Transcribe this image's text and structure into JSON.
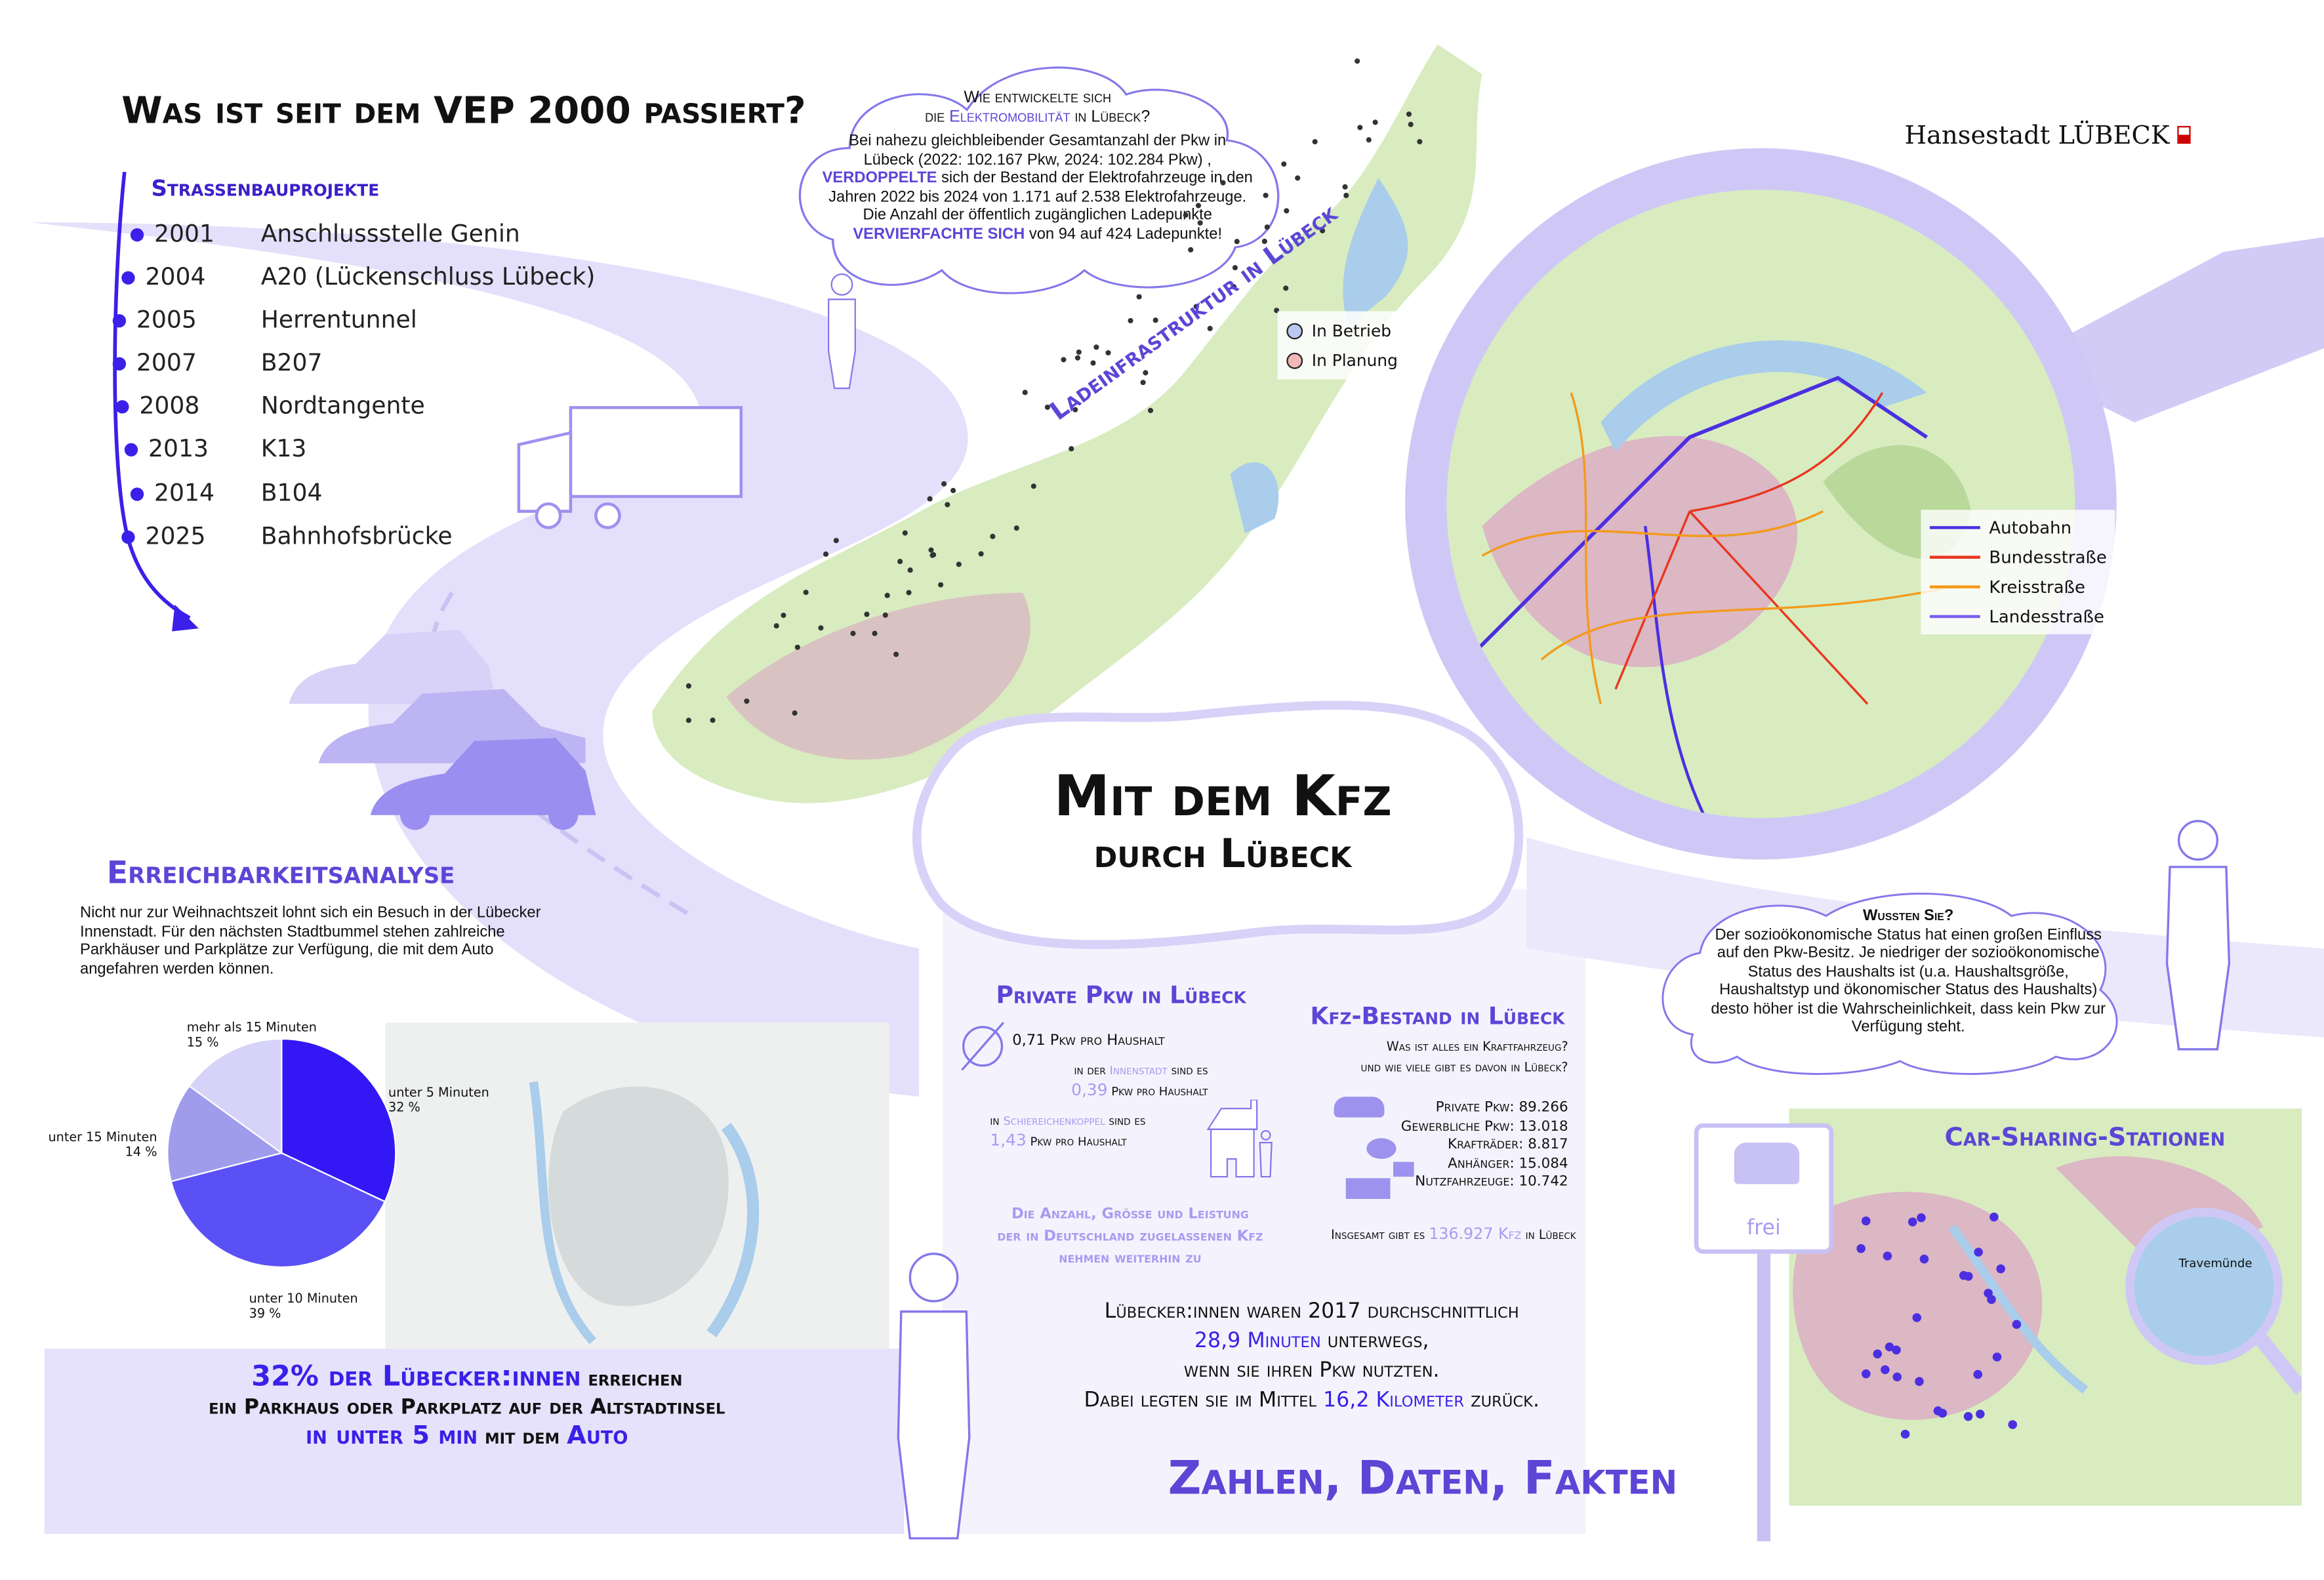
{
  "timeline": {
    "title": "Was ist seit dem VEP 2000 passiert?",
    "subtitle": "Straßenbauprojekte",
    "items": [
      {
        "year": "2001",
        "project": "Anschlussstelle Genin"
      },
      {
        "year": "2004",
        "project": "A20 (Lückenschluss Lübeck)"
      },
      {
        "year": "2005",
        "project": "Herrentunnel"
      },
      {
        "year": "2007",
        "project": "B207"
      },
      {
        "year": "2008",
        "project": "Nordtangente"
      },
      {
        "year": "2013",
        "project": "K13"
      },
      {
        "year": "2014",
        "project": "B104"
      },
      {
        "year": "2025",
        "project": "Bahnhofsbrücke"
      }
    ]
  },
  "emob": {
    "q1": "Wie entwickelte sich",
    "q2a": "die ",
    "q2b": "Elektromobilität",
    "q2c": " in Lübeck?",
    "l1": "Bei nahezu gleichbleibender Gesamtanzahl der Pkw in",
    "l2": "Lübeck (2022: 102.167 Pkw, 2024: 102.284 Pkw) ,",
    "l3a": "VERDOPPELTE",
    "l3b": " sich der Bestand der Elektrofahrzeuge in den",
    "l4": "Jahren 2022 bis 2024 von 1.171 auf 2.538 Elektrofahrzeuge.",
    "l5": "Die Anzahl der öffentlich zugänglichen Ladepunkte",
    "l6a": "VERVIERFACHTE SICH",
    "l6b": " von 94 auf 424 Ladepunkte!"
  },
  "lade_map": {
    "title": "Ladeinfrastruktur in Lübeck",
    "legend": [
      {
        "label": "In Betrieb",
        "color": "#b9c8ee"
      },
      {
        "label": "In Planung",
        "color": "#f2b7b7"
      }
    ]
  },
  "logo": {
    "text": "Hansestadt LÜBECK"
  },
  "road_map": {
    "legend": [
      {
        "label": "Autobahn",
        "color": "#4b2fe0"
      },
      {
        "label": "Bundesstraße",
        "color": "#e8361f"
      },
      {
        "label": "Kreisstraße",
        "color": "#f39a1b"
      },
      {
        "label": "Landesstraße",
        "color": "#7a5ef0"
      }
    ]
  },
  "center_title": {
    "line1": "Mit dem Kfz",
    "line2": "durch Lübeck"
  },
  "reach": {
    "title": "Erreichbarkeitsanalyse",
    "text": "Nicht nur zur Weihnachtszeit lohnt sich ein Besuch in der Lübecker Innenstadt. Für den nächsten Stadtbummel stehen zahlreiche Parkhäuser und Parkplätze zur Verfügung, die mit dem Auto angefahren werden können.",
    "s1": "32% der Lübecker:innen",
    "s2": " erreichen",
    "s3": "ein Parkhaus oder Parkplatz auf der Altstadtinsel",
    "s4": "in unter 5 min",
    "s5": " mit dem ",
    "s6": "Auto"
  },
  "chart_data": {
    "type": "pie",
    "slices": [
      {
        "label": "unter 5 Minuten",
        "value": 32,
        "display": "32 %",
        "color": "#3318f5"
      },
      {
        "label": "unter 10 Minuten",
        "value": 39,
        "display": "39 %",
        "color": "#5b50f6"
      },
      {
        "label": "unter 15 Minuten",
        "value": 14,
        "display": "14 %",
        "color": "#a09cec"
      },
      {
        "label": "mehr als 15 Minuten",
        "value": 15,
        "display": "15 %",
        "color": "#d6d2f8"
      }
    ]
  },
  "private_pkw": {
    "title": "Private Pkw in Lübeck",
    "avg": "0,71 Pkw pro Haushalt",
    "inner_a": "in der ",
    "inner_b": "Innenstadt",
    "inner_c": " sind es",
    "inner_val": "0,39",
    "inner_unit": " Pkw pro Haushalt",
    "sch_a": "in ",
    "sch_b": "Schiereichenkoppel",
    "sch_c": " sind es",
    "sch_val": "1,43",
    "sch_unit": " Pkw pro Haushalt",
    "trend1": "Die Anzahl, Größe und Leistung",
    "trend2": "der in Deutschland zugelassenen Kfz",
    "trend3": "nehmen weiterhin zu"
  },
  "kfz": {
    "title": "Kfz-Bestand in Lübeck",
    "q1": "Was ist alles ein Kraftfahrzeug?",
    "q2": "und wie viele gibt es davon in Lübeck?",
    "rows": [
      {
        "label": "Private Pkw:",
        "value": "89.266"
      },
      {
        "label": "Gewerbliche Pkw:",
        "value": "13.018"
      },
      {
        "label": "Krafträder:",
        "value": "8.817"
      },
      {
        "label": "Anhänger:",
        "value": "15.084"
      },
      {
        "label": "Nutzfahrzeuge:",
        "value": "10.742"
      }
    ],
    "total_a": "Insgesamt gibt es ",
    "total_b": "136.927 Kfz",
    "total_c": " in Lübeck"
  },
  "travel": {
    "l1": "Lübecker:innen waren 2017 durchschnittlich",
    "l2a": "28,9 Minuten",
    "l2b": " unterwegs,",
    "l3": "wenn sie ihren Pkw nutzten.",
    "l4a": "Dabei legten sie im Mittel ",
    "l4b": "16,2 Kilometer",
    "l4c": " zurück."
  },
  "footer_title": "Zahlen, Daten, Fakten",
  "fact": {
    "title": "Wussten Sie?",
    "text": "Der sozioökonomische Status hat einen großen Einfluss auf den Pkw-Besitz. Je niedriger der sozioökonomische Status des Haushalts ist (u.a. Haushaltsgröße, Haushaltstyp und ökonomischer Status des Haushalts) desto höher ist die Wahrscheinlichkeit, dass kein Pkw zur Verfügung steht."
  },
  "carsharing": {
    "title": "Car-Sharing-Stationen",
    "place": "Travemünde",
    "sign": "frei"
  }
}
